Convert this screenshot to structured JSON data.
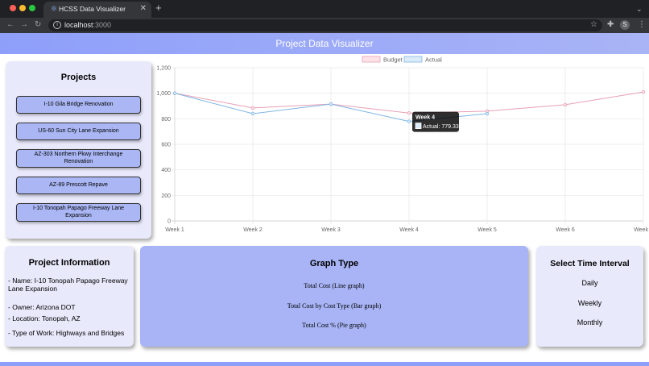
{
  "browser": {
    "tab_title": "HCSS Data Visualizer",
    "url_host": "localhost",
    "url_port": ":3000",
    "profile_initial": "S",
    "colors": {
      "frame": "#202124",
      "toolbar": "#35363a"
    }
  },
  "app": {
    "title": "Project Data Visualizer",
    "colors": {
      "header": "#8e9ffa",
      "panel": "#e8e9fb",
      "button": "#aab7f4",
      "graph_panel": "#a8b4f5"
    }
  },
  "projects": {
    "title": "Projects",
    "items": [
      "I-10 Gila Bridge Renovation",
      "US-60 Sun City Lane Expansion",
      "AZ-303 Northern Pkwy Interchange Renovation",
      "AZ-89 Prescott Repave",
      "I-10 Tonopah Papago Freeway Lane Expansion"
    ]
  },
  "project_info": {
    "title": "Project Information",
    "lines": [
      "- Name: I-10 Tonopah Papago Freeway Lane Expansion",
      "- Owner: Arizona DOT",
      "- Location: Tonopah, AZ",
      "- Type of Work: Highways and Bridges"
    ]
  },
  "graph_type": {
    "title": "Graph Type",
    "options": [
      "Total Cost (Line graph)",
      "Total Cost by Cost Type (Bar graph)",
      "Total Cost % (Pie graph)"
    ]
  },
  "time_interval": {
    "title": "Select Time Interval",
    "options": [
      "Daily",
      "Weekly",
      "Monthly"
    ]
  },
  "tooltip": {
    "title": "Week 4",
    "body": "Actual: 779.33"
  },
  "chart_data": {
    "type": "line",
    "categories": [
      "Week 1",
      "Week 2",
      "Week 3",
      "Week 4",
      "Week 5",
      "Week 6",
      "Week 7"
    ],
    "series": [
      {
        "name": "Budget",
        "values": [
          1000,
          885,
          915,
          845,
          860,
          910,
          1010
        ],
        "color": "#e8a0b4",
        "fill": "#fde3e8"
      },
      {
        "name": "Actual",
        "values": [
          1000,
          840,
          915,
          779.33,
          840,
          null,
          null
        ],
        "color": "#7fb6e6",
        "fill": "#dcebf8"
      }
    ],
    "ylim": [
      0,
      1200
    ],
    "yticks": [
      "0",
      "200",
      "400",
      "600",
      "800",
      "1,000",
      "1,200"
    ],
    "grid": true,
    "legend_position": "top-center"
  }
}
